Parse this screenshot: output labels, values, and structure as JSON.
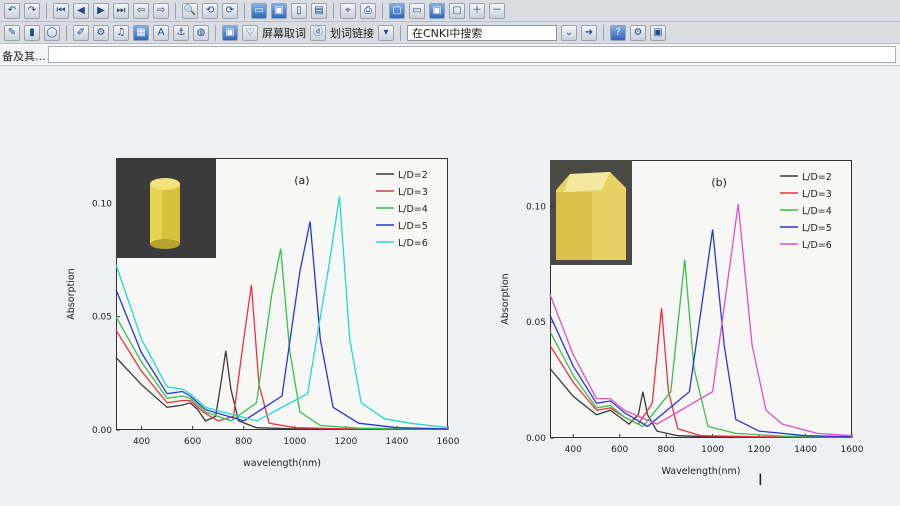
{
  "toolbar": {
    "capture_label": "屏幕取词",
    "link_label": "划词链接",
    "search_value": "在CNKI中搜索"
  },
  "address_bar": {
    "text": "备及其..."
  },
  "colors": {
    "L/D=2": "#3a3a3a",
    "L/D=3": "#e8343c",
    "L/D=4": "#36c24a",
    "L/D=5": "#2838d0",
    "L/D=6a": "#20d8d0",
    "L/D=6b": "#e050c8"
  },
  "chart_data": [
    {
      "type": "line",
      "title": "(a)",
      "xlabel": "wavelength(nm)",
      "ylabel": "Absorption",
      "xlim": [
        300,
        1600
      ],
      "ylim": [
        0,
        0.12
      ],
      "xticks": [
        400,
        600,
        800,
        1000,
        1200,
        1400,
        1600
      ],
      "yticks": [
        0.0,
        0.05,
        0.1
      ],
      "ytick_labels": [
        "0.00",
        "0.05",
        "0.10"
      ],
      "legend_position": "top-right",
      "series": [
        {
          "name": "L/D=2",
          "color": "#3a3a3a",
          "x": [
            300,
            400,
            500,
            560,
            590,
            620,
            650,
            690,
            710,
            730,
            750,
            780,
            850,
            1000,
            1600
          ],
          "y": [
            0.032,
            0.02,
            0.01,
            0.011,
            0.012,
            0.009,
            0.004,
            0.006,
            0.02,
            0.035,
            0.018,
            0.004,
            0.001,
            0.0005,
            0.0003
          ]
        },
        {
          "name": "L/D=3",
          "color": "#e8343c",
          "x": [
            300,
            400,
            500,
            560,
            590,
            640,
            700,
            760,
            800,
            830,
            860,
            900,
            1000,
            1200,
            1600
          ],
          "y": [
            0.044,
            0.026,
            0.012,
            0.013,
            0.013,
            0.008,
            0.004,
            0.006,
            0.04,
            0.064,
            0.02,
            0.003,
            0.001,
            0.0005,
            0.0003
          ]
        },
        {
          "name": "L/D=4",
          "color": "#36c24a",
          "x": [
            300,
            400,
            500,
            560,
            590,
            650,
            750,
            850,
            910,
            945,
            980,
            1020,
            1100,
            1250,
            1600
          ],
          "y": [
            0.05,
            0.03,
            0.014,
            0.015,
            0.014,
            0.008,
            0.004,
            0.012,
            0.06,
            0.08,
            0.035,
            0.008,
            0.002,
            0.0008,
            0.0004
          ]
        },
        {
          "name": "L/D=5",
          "color": "#2838d0",
          "x": [
            300,
            400,
            500,
            560,
            590,
            650,
            800,
            950,
            1020,
            1060,
            1100,
            1150,
            1250,
            1400,
            1600
          ],
          "y": [
            0.062,
            0.034,
            0.016,
            0.017,
            0.015,
            0.009,
            0.004,
            0.015,
            0.07,
            0.092,
            0.04,
            0.01,
            0.003,
            0.001,
            0.0005
          ]
        },
        {
          "name": "L/D=6",
          "color": "#20d8d0",
          "x": [
            300,
            400,
            500,
            560,
            590,
            650,
            850,
            1050,
            1130,
            1175,
            1215,
            1260,
            1350,
            1450,
            1600
          ],
          "y": [
            0.073,
            0.04,
            0.019,
            0.018,
            0.016,
            0.01,
            0.004,
            0.016,
            0.07,
            0.103,
            0.04,
            0.012,
            0.005,
            0.003,
            0.001
          ]
        }
      ]
    },
    {
      "type": "line",
      "title": "(b)",
      "xlabel": "Wavelength(nm)",
      "ylabel": "Absorption",
      "xlim": [
        300,
        1600
      ],
      "ylim": [
        0,
        0.12
      ],
      "xticks": [
        400,
        600,
        800,
        1000,
        1200,
        1400,
        1600
      ],
      "yticks": [
        0.0,
        0.05,
        0.1
      ],
      "ytick_labels": [
        "0.00",
        "0.05",
        "0.10"
      ],
      "legend_position": "top-right",
      "series": [
        {
          "name": "L/D=2",
          "color": "#3a3a3a",
          "x": [
            300,
            400,
            500,
            560,
            600,
            640,
            680,
            700,
            720,
            760,
            850,
            1000,
            1600
          ],
          "y": [
            0.03,
            0.018,
            0.01,
            0.012,
            0.009,
            0.006,
            0.01,
            0.02,
            0.01,
            0.003,
            0.001,
            0.0005,
            0.0003
          ]
        },
        {
          "name": "L/D=3",
          "color": "#e8343c",
          "x": [
            300,
            400,
            500,
            560,
            620,
            680,
            740,
            780,
            810,
            850,
            950,
            1200,
            1600
          ],
          "y": [
            0.04,
            0.024,
            0.012,
            0.013,
            0.009,
            0.006,
            0.015,
            0.056,
            0.02,
            0.004,
            0.001,
            0.0005,
            0.0003
          ]
        },
        {
          "name": "L/D=4",
          "color": "#36c24a",
          "x": [
            300,
            400,
            500,
            560,
            620,
            700,
            820,
            880,
            920,
            980,
            1100,
            1300,
            1600
          ],
          "y": [
            0.046,
            0.027,
            0.013,
            0.014,
            0.009,
            0.005,
            0.02,
            0.077,
            0.03,
            0.005,
            0.002,
            0.0008,
            0.0004
          ]
        },
        {
          "name": "L/D=5",
          "color": "#2838d0",
          "x": [
            300,
            400,
            500,
            560,
            620,
            720,
            900,
            1000,
            1050,
            1100,
            1200,
            1400,
            1600
          ],
          "y": [
            0.053,
            0.031,
            0.015,
            0.016,
            0.011,
            0.005,
            0.02,
            0.09,
            0.04,
            0.008,
            0.003,
            0.001,
            0.0005
          ]
        },
        {
          "name": "L/D=6",
          "color": "#e050c8",
          "x": [
            300,
            400,
            500,
            560,
            620,
            760,
            1000,
            1110,
            1170,
            1230,
            1300,
            1450,
            1600
          ],
          "y": [
            0.062,
            0.036,
            0.017,
            0.017,
            0.012,
            0.006,
            0.02,
            0.101,
            0.04,
            0.012,
            0.006,
            0.002,
            0.001
          ]
        }
      ]
    }
  ]
}
